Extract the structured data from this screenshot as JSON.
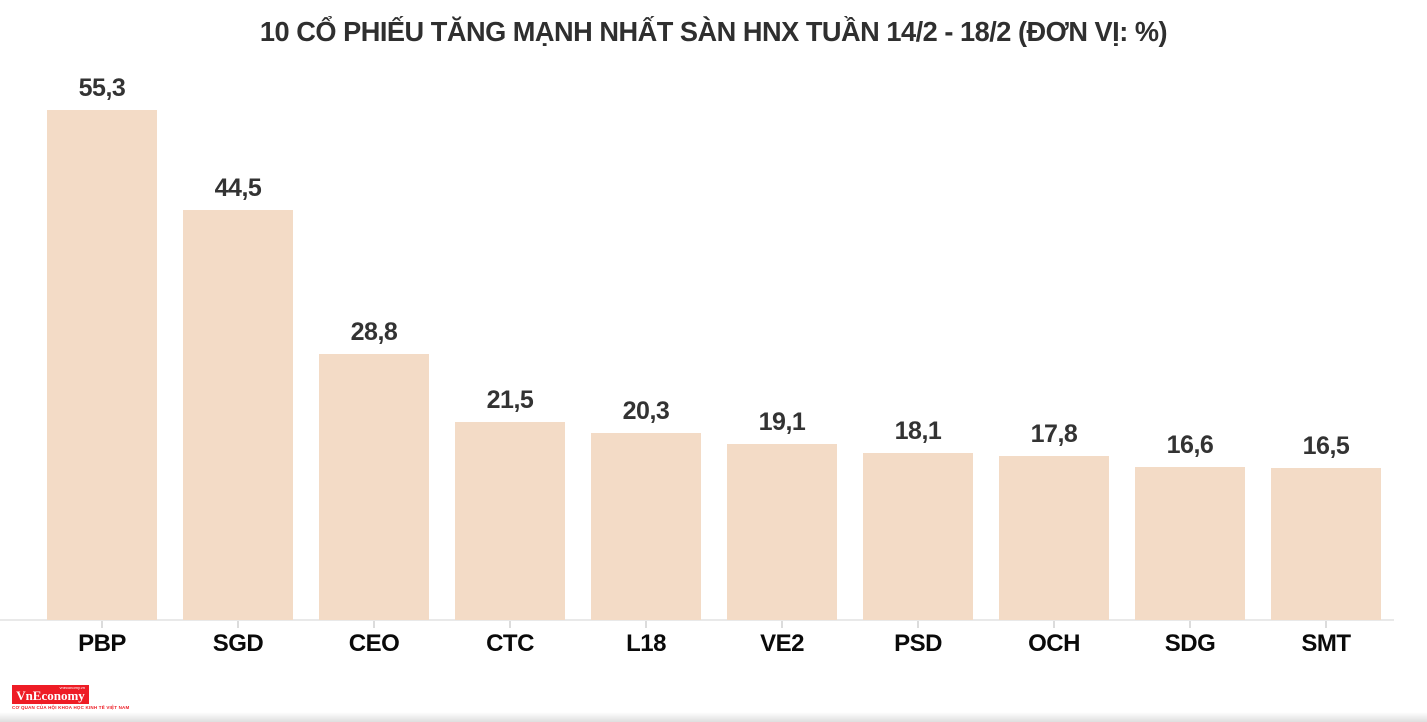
{
  "chart_data": {
    "type": "bar",
    "title": "10 CỔ PHIẾU TĂNG MẠNH NHẤT SÀN HNX TUẦN 14/2 - 18/2 (ĐƠN VỊ: %)",
    "categories": [
      "PBP",
      "SGD",
      "CEO",
      "CTC",
      "L18",
      "VE2",
      "PSD",
      "OCH",
      "SDG",
      "SMT"
    ],
    "values": [
      55.3,
      44.5,
      28.8,
      21.5,
      20.3,
      19.1,
      18.1,
      17.8,
      16.6,
      16.5
    ],
    "value_labels": [
      "55,3",
      "44,5",
      "28,8",
      "21,5",
      "20,3",
      "19,1",
      "18,1",
      "17,8",
      "16,6",
      "16,5"
    ],
    "unit": "%",
    "xlabel": "",
    "ylabel": "",
    "ylim": [
      0,
      60
    ],
    "grid": false,
    "legend_position": "none",
    "bar_color": "#f3dbc6",
    "value_label_color": "#333333",
    "category_label_color": "#0a0a0a",
    "axis_color": "#e9e9e9"
  },
  "footer": {
    "logo": {
      "brand": "VnEconomy",
      "website": "vneconomy.vn",
      "tagline": "CƠ QUAN CỦA HỘI KHOA HỌC KINH TẾ VIỆT NAM",
      "background": "#ee1c25"
    }
  }
}
